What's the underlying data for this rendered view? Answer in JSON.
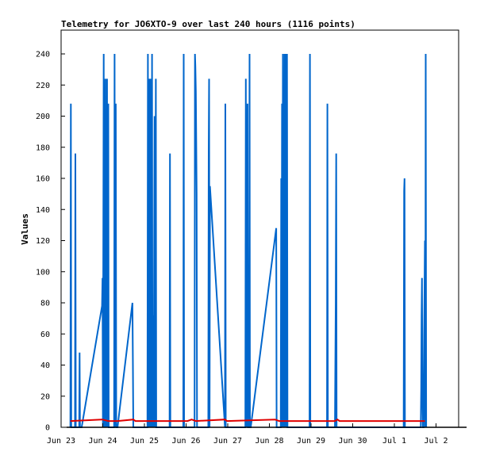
{
  "chart_data": {
    "type": "line",
    "title": "Telemetry for JO6XTO-9 over last 240 hours (1116 points)",
    "ylabel": "Values",
    "xlabel": "",
    "x_tick_labels": [
      "Jun 23",
      "Jun 24",
      "Jun 25",
      "Jun 26",
      "Jun 27",
      "Jun 28",
      "Jun 29",
      "Jun 30",
      "Jul 1",
      "Jul 2"
    ],
    "y_ticks": [
      0,
      20,
      40,
      60,
      80,
      100,
      120,
      140,
      160,
      180,
      200,
      220,
      240
    ],
    "xlim_days": [
      0,
      9.6
    ],
    "ylim": [
      0,
      255
    ],
    "grid": false,
    "colors": {
      "blue": "#0066cc",
      "red": "#e00000",
      "black": "#000000"
    },
    "series": [
      {
        "color": "#0066cc",
        "points": [
          [
            0.09,
            0
          ],
          [
            0.1,
            208
          ],
          [
            0.11,
            0
          ],
          [
            0.2,
            0
          ],
          [
            0.21,
            176
          ],
          [
            0.22,
            0
          ],
          [
            0.3,
            0
          ],
          [
            0.31,
            48
          ],
          [
            0.32,
            0
          ],
          [
            0.36,
            0
          ],
          [
            0.85,
            78
          ],
          [
            0.86,
            96
          ],
          [
            0.87,
            0
          ],
          [
            0.89,
            240
          ],
          [
            0.9,
            0
          ],
          [
            0.93,
            224
          ],
          [
            0.94,
            0
          ],
          [
            0.95,
            144
          ],
          [
            0.96,
            0
          ],
          [
            0.97,
            224
          ],
          [
            0.98,
            0
          ],
          [
            1.0,
            208
          ],
          [
            1.01,
            0
          ],
          [
            1.14,
            0
          ],
          [
            1.15,
            240
          ],
          [
            1.16,
            0
          ],
          [
            1.18,
            208
          ],
          [
            1.19,
            0
          ],
          [
            1.22,
            0
          ],
          [
            1.58,
            80
          ],
          [
            1.59,
            40
          ],
          [
            1.6,
            0
          ],
          [
            1.94,
            0
          ],
          [
            1.95,
            240
          ],
          [
            1.96,
            0
          ],
          [
            1.98,
            224
          ],
          [
            1.99,
            0
          ],
          [
            2.01,
            224
          ],
          [
            2.02,
            0
          ],
          [
            2.03,
            48
          ],
          [
            2.04,
            0
          ],
          [
            2.05,
            240
          ],
          [
            2.06,
            0
          ],
          [
            2.08,
            72
          ],
          [
            2.09,
            0
          ],
          [
            2.11,
            200
          ],
          [
            2.12,
            0
          ],
          [
            2.14,
            224
          ],
          [
            2.15,
            0
          ],
          [
            2.47,
            0
          ],
          [
            2.48,
            176
          ],
          [
            2.49,
            0
          ],
          [
            2.8,
            0
          ],
          [
            2.81,
            240
          ],
          [
            2.82,
            0
          ],
          [
            3.07,
            0
          ],
          [
            3.08,
            240
          ],
          [
            3.09,
            232
          ],
          [
            3.1,
            216
          ],
          [
            3.11,
            184
          ],
          [
            3.12,
            150
          ],
          [
            3.13,
            0
          ],
          [
            3.18,
            0
          ],
          [
            3.4,
            0
          ],
          [
            3.41,
            176
          ],
          [
            3.42,
            224
          ],
          [
            3.43,
            0
          ],
          [
            3.44,
            155
          ],
          [
            3.8,
            0
          ],
          [
            3.81,
            208
          ],
          [
            3.82,
            0
          ],
          [
            4.29,
            0
          ],
          [
            4.3,
            224
          ],
          [
            4.31,
            0
          ],
          [
            4.32,
            144
          ],
          [
            4.33,
            0
          ],
          [
            4.34,
            208
          ],
          [
            4.35,
            0
          ],
          [
            4.38,
            0
          ],
          [
            4.39,
            240
          ],
          [
            4.4,
            0
          ],
          [
            4.42,
            0
          ],
          [
            5.03,
            128
          ],
          [
            5.04,
            0
          ],
          [
            5.14,
            0
          ],
          [
            5.15,
            160
          ],
          [
            5.16,
            0
          ],
          [
            5.17,
            208
          ],
          [
            5.18,
            0
          ],
          [
            5.19,
            240
          ],
          [
            5.2,
            0
          ],
          [
            5.21,
            208
          ],
          [
            5.22,
            0
          ],
          [
            5.23,
            240
          ],
          [
            5.24,
            0
          ],
          [
            5.26,
            240
          ],
          [
            5.27,
            0
          ],
          [
            5.29,
            240
          ],
          [
            5.3,
            0
          ],
          [
            5.83,
            0
          ],
          [
            5.84,
            240
          ],
          [
            5.85,
            0
          ],
          [
            6.25,
            0
          ],
          [
            6.26,
            208
          ],
          [
            6.27,
            0
          ],
          [
            6.44,
            0
          ],
          [
            6.46,
            80
          ],
          [
            6.47,
            176
          ],
          [
            6.48,
            0
          ],
          [
            8.09,
            0
          ],
          [
            8.1,
            152
          ],
          [
            8.11,
            160
          ],
          [
            8.12,
            0
          ],
          [
            8.5,
            0
          ],
          [
            8.51,
            24
          ],
          [
            8.52,
            72
          ],
          [
            8.53,
            96
          ],
          [
            8.54,
            24
          ],
          [
            8.55,
            0
          ],
          [
            8.57,
            0
          ],
          [
            8.58,
            60
          ],
          [
            8.59,
            88
          ],
          [
            8.6,
            120
          ],
          [
            8.61,
            0
          ],
          [
            8.62,
            240
          ],
          [
            8.63,
            0
          ]
        ]
      },
      {
        "color": "#e00000",
        "points": [
          [
            0.09,
            4
          ],
          [
            0.86,
            5
          ],
          [
            1.0,
            4
          ],
          [
            1.22,
            4
          ],
          [
            1.6,
            5
          ],
          [
            1.65,
            4
          ],
          [
            2.9,
            4
          ],
          [
            3.0,
            5
          ],
          [
            3.1,
            4
          ],
          [
            3.8,
            5
          ],
          [
            3.85,
            4
          ],
          [
            5.0,
            5
          ],
          [
            5.1,
            4
          ],
          [
            6.44,
            4
          ],
          [
            6.5,
            5
          ],
          [
            6.55,
            4
          ],
          [
            8.6,
            4
          ]
        ]
      },
      {
        "color": "#000000",
        "points": [
          [
            0.0,
            0
          ],
          [
            9.6,
            0
          ]
        ]
      }
    ]
  }
}
